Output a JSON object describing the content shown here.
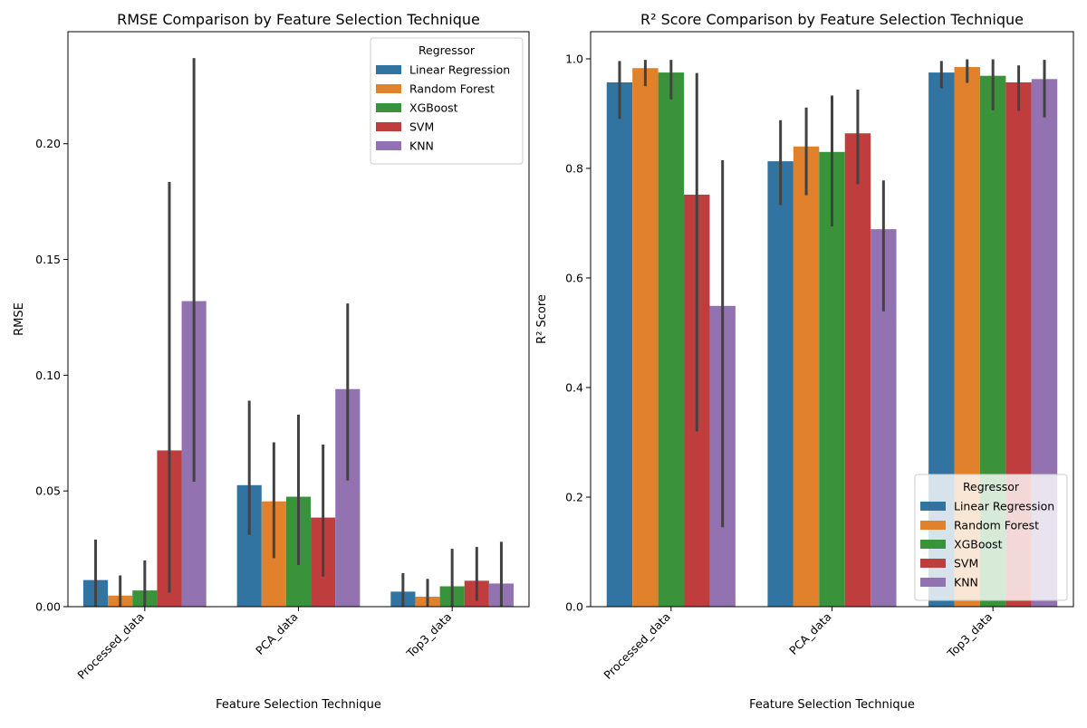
{
  "chart_data": [
    {
      "type": "bar",
      "title": "RMSE Comparison by Feature Selection Technique",
      "xlabel": "Feature Selection Technique",
      "ylabel": "RMSE",
      "categories": [
        "Processed_data",
        "PCA_data",
        "Top3_data"
      ],
      "ylim": [
        0,
        0.2484
      ],
      "yticks": [
        0.0,
        0.05,
        0.1,
        0.15,
        0.2
      ],
      "ytick_labels": [
        "0.00",
        "0.05",
        "0.10",
        "0.15",
        "0.20"
      ],
      "grid": false,
      "legend": {
        "title": "Regressor",
        "placement": "top-right"
      },
      "series": [
        {
          "name": "Linear Regression",
          "color": "#3274a1",
          "values": [
            0.0115,
            0.0525,
            0.0065
          ],
          "ci_low": [
            0.0,
            0.031,
            0.0
          ],
          "ci_high": [
            0.029,
            0.089,
            0.0145
          ]
        },
        {
          "name": "Random Forest",
          "color": "#e1812c",
          "values": [
            0.0048,
            0.0455,
            0.0043
          ],
          "ci_low": [
            0.0,
            0.021,
            0.0
          ],
          "ci_high": [
            0.0135,
            0.071,
            0.012
          ]
        },
        {
          "name": "XGBoost",
          "color": "#3a923a",
          "values": [
            0.007,
            0.0475,
            0.0088
          ],
          "ci_low": [
            0.0,
            0.018,
            0.0
          ],
          "ci_high": [
            0.02,
            0.083,
            0.025
          ]
        },
        {
          "name": "SVM",
          "color": "#c03d3e",
          "values": [
            0.0675,
            0.0385,
            0.0112
          ],
          "ci_low": [
            0.006,
            0.013,
            0.0025
          ],
          "ci_high": [
            0.1835,
            0.07,
            0.0258
          ]
        },
        {
          "name": "KNN",
          "color": "#9372b2",
          "values": [
            0.132,
            0.094,
            0.01
          ],
          "ci_low": [
            0.054,
            0.0545,
            0.0
          ],
          "ci_high": [
            0.237,
            0.131,
            0.028
          ]
        }
      ]
    },
    {
      "type": "bar",
      "title": "R² Score Comparison by Feature Selection Technique",
      "xlabel": "Feature Selection Technique",
      "ylabel": "R² Score",
      "categories": [
        "Processed_data",
        "PCA_data",
        "Top3_data"
      ],
      "ylim": [
        0,
        1.0495
      ],
      "yticks": [
        0.0,
        0.2,
        0.4,
        0.6,
        0.8,
        1.0
      ],
      "ytick_labels": [
        "0.0",
        "0.2",
        "0.4",
        "0.6",
        "0.8",
        "1.0"
      ],
      "grid": false,
      "legend": {
        "title": "Regressor",
        "placement": "bottom-right"
      },
      "series": [
        {
          "name": "Linear Regression",
          "color": "#3274a1",
          "values": [
            0.957,
            0.813,
            0.975
          ],
          "ci_low": [
            0.89,
            0.733,
            0.946
          ],
          "ci_high": [
            0.996,
            0.888,
            0.996
          ]
        },
        {
          "name": "Random Forest",
          "color": "#e1812c",
          "values": [
            0.983,
            0.84,
            0.985
          ],
          "ci_low": [
            0.95,
            0.751,
            0.956
          ],
          "ci_high": [
            0.998,
            0.911,
            0.999
          ]
        },
        {
          "name": "XGBoost",
          "color": "#3a923a",
          "values": [
            0.975,
            0.83,
            0.969
          ],
          "ci_low": [
            0.926,
            0.694,
            0.906
          ],
          "ci_high": [
            0.998,
            0.933,
            0.999
          ]
        },
        {
          "name": "SVM",
          "color": "#c03d3e",
          "values": [
            0.752,
            0.864,
            0.957
          ],
          "ci_low": [
            0.32,
            0.771,
            0.905
          ],
          "ci_high": [
            0.974,
            0.944,
            0.988
          ]
        },
        {
          "name": "KNN",
          "color": "#9372b2",
          "values": [
            0.549,
            0.689,
            0.963
          ],
          "ci_low": [
            0.145,
            0.539,
            0.893
          ],
          "ci_high": [
            0.815,
            0.778,
            0.998
          ]
        }
      ]
    }
  ]
}
